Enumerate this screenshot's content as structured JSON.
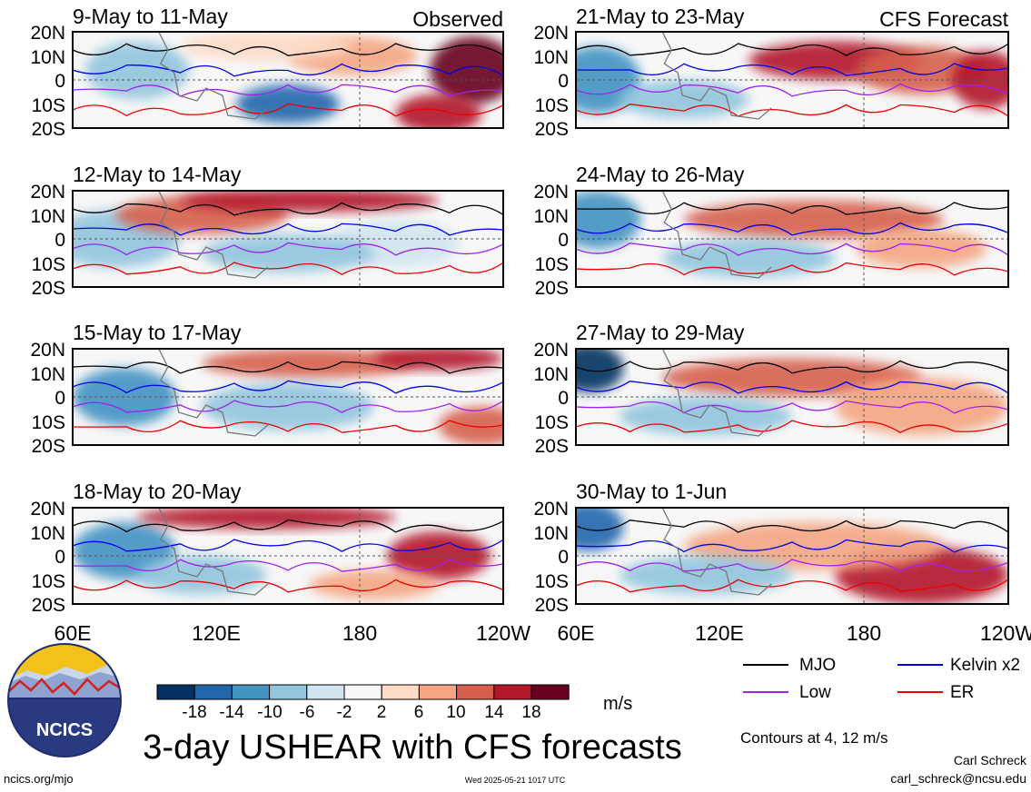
{
  "title": "3-day USHEAR with CFS forecasts",
  "column_labels": {
    "observed": "Observed",
    "forecast": "CFS Forecast"
  },
  "panels": [
    {
      "label": "9-May to 11-May"
    },
    {
      "label": "12-May to 14-May"
    },
    {
      "label": "15-May to 17-May"
    },
    {
      "label": "18-May to 20-May"
    },
    {
      "label": "21-May to 23-May"
    },
    {
      "label": "24-May to 26-May"
    },
    {
      "label": "27-May to 29-May"
    },
    {
      "label": "30-May to 1-Jun"
    }
  ],
  "lat_labels": [
    "20N",
    "10N",
    "0",
    "10S",
    "20S"
  ],
  "lon_labels": [
    "60E",
    "120E",
    "180",
    "120W"
  ],
  "colorbar": {
    "tick_labels": [
      "-18",
      "-14",
      "-10",
      "-6",
      "-2",
      "2",
      "6",
      "10",
      "14",
      "18"
    ],
    "colors": [
      "#053061",
      "#2166ac",
      "#4393c3",
      "#92c5de",
      "#d1e5f0",
      "#f7f7f7",
      "#fddbc7",
      "#f4a582",
      "#d6604d",
      "#b2182b",
      "#67001f"
    ],
    "units": "m/s"
  },
  "legend": {
    "items": [
      {
        "label": "MJO",
        "color": "#000000"
      },
      {
        "label": "Kelvin x2",
        "color": "#0000ee"
      },
      {
        "label": "Low",
        "color": "#a020f0"
      },
      {
        "label": "ER",
        "color": "#ee0000"
      }
    ],
    "contour_note": "Contours at 4, 12 m/s"
  },
  "logo": {
    "text": "NCICS"
  },
  "footer": {
    "url": "ncics.org/mjo",
    "timestamp": "Wed 2025-05-21 1017 UTC",
    "author": "Carl Schreck",
    "email": "carl_schreck@ncsu.edu"
  }
}
